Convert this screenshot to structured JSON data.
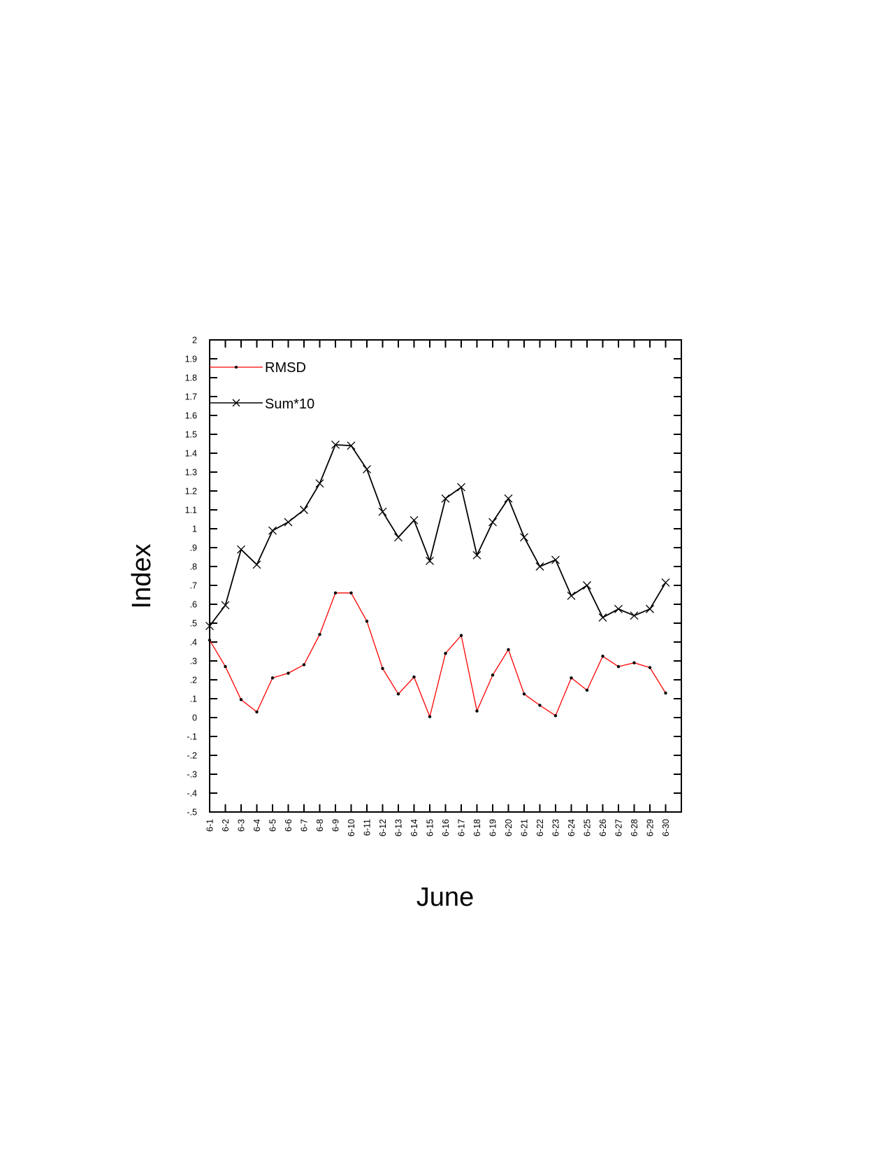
{
  "chart_data": {
    "type": "line",
    "title": "",
    "xlabel": "June",
    "ylabel": "Index",
    "categories": [
      "6-1",
      "6-2",
      "6-3",
      "6-4",
      "6-5",
      "6-6",
      "6-7",
      "6-8",
      "6-9",
      "6-10",
      "6-11",
      "6-12",
      "6-13",
      "6-14",
      "6-15",
      "6-16",
      "6-17",
      "6-18",
      "6-19",
      "6-20",
      "6-21",
      "6-22",
      "6-23",
      "6-24",
      "6-25",
      "6-26",
      "6-27",
      "6-28",
      "6-29",
      "6-30"
    ],
    "ylim": [
      -0.5,
      2
    ],
    "yticks": [
      "-.5",
      "-.4",
      "-.3",
      "-.2",
      "-.1",
      "0",
      ".1",
      ".2",
      ".3",
      ".4",
      ".5",
      ".6",
      ".7",
      ".8",
      ".9",
      "1",
      "1.1",
      "1.2",
      "1.3",
      "1.4",
      "1.5",
      "1.6",
      "1.7",
      "1.8",
      "1.9",
      "2"
    ],
    "grid": false,
    "legend_position": "top-left",
    "series": [
      {
        "name": "RMSD",
        "color": "#ff0000",
        "marker": "dot",
        "values": [
          0.41,
          0.27,
          0.095,
          0.03,
          0.21,
          0.235,
          0.28,
          0.44,
          0.66,
          0.66,
          0.51,
          0.26,
          0.125,
          0.215,
          0.005,
          0.34,
          0.435,
          0.035,
          0.225,
          0.36,
          0.125,
          0.065,
          0.01,
          0.21,
          0.145,
          0.325,
          0.27,
          0.29,
          0.265,
          0.13
        ]
      },
      {
        "name": "Sum*10",
        "color": "#000000",
        "marker": "x",
        "values": [
          0.485,
          0.595,
          0.89,
          0.81,
          0.99,
          1.035,
          1.1,
          1.24,
          1.445,
          1.44,
          1.315,
          1.09,
          0.955,
          1.045,
          0.83,
          1.16,
          1.22,
          0.86,
          1.035,
          1.16,
          0.955,
          0.8,
          0.835,
          0.645,
          0.7,
          0.53,
          0.575,
          0.54,
          0.575,
          0.715
        ]
      }
    ]
  }
}
